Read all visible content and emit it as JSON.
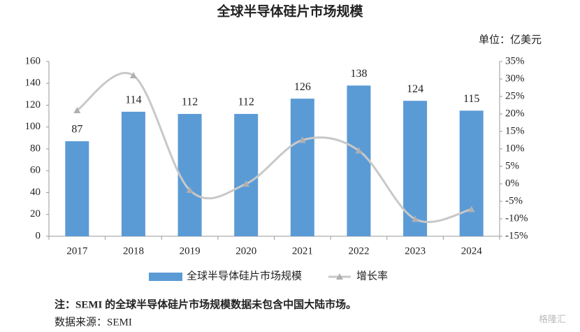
{
  "chart_data": {
    "type": "bar-line",
    "title": "全球半导体硅片市场规模",
    "unit": "单位：亿美元",
    "categories": [
      "2017",
      "2018",
      "2019",
      "2020",
      "2021",
      "2022",
      "2023",
      "2024"
    ],
    "series": [
      {
        "name": "全球半导体硅片市场规模",
        "type": "bar",
        "color": "#5b9bd5",
        "values": [
          87,
          114,
          112,
          112,
          126,
          138,
          124,
          115
        ]
      },
      {
        "name": "增长率",
        "type": "line",
        "axis": "y2",
        "color": "#c8c8c8",
        "values": [
          21,
          31,
          -1.8,
          0,
          12.5,
          9.5,
          -10.1,
          -7.3
        ]
      }
    ],
    "ylim": [
      0,
      160
    ],
    "yticks": [
      0,
      20,
      40,
      60,
      80,
      100,
      120,
      140,
      160
    ],
    "y2lim": [
      -15,
      35
    ],
    "y2ticks": [
      {
        "value": -15,
        "label": "-15%"
      },
      {
        "value": -10,
        "label": "-10%"
      },
      {
        "value": -5,
        "label": "-5%"
      },
      {
        "value": 0,
        "label": "0%"
      },
      {
        "value": 5,
        "label": "5%"
      },
      {
        "value": 10,
        "label": "10%"
      },
      {
        "value": 15,
        "label": "15%"
      },
      {
        "value": 20,
        "label": "20%"
      },
      {
        "value": 25,
        "label": "25%"
      },
      {
        "value": 30,
        "label": "30%"
      },
      {
        "value": 35,
        "label": "35%"
      }
    ],
    "grid": false,
    "note": "注：SEMI 的全球半导体硅片市场规模数据未包含中国大陆市场。",
    "source": "数据来源：SEMI",
    "watermark": "格隆汇"
  }
}
